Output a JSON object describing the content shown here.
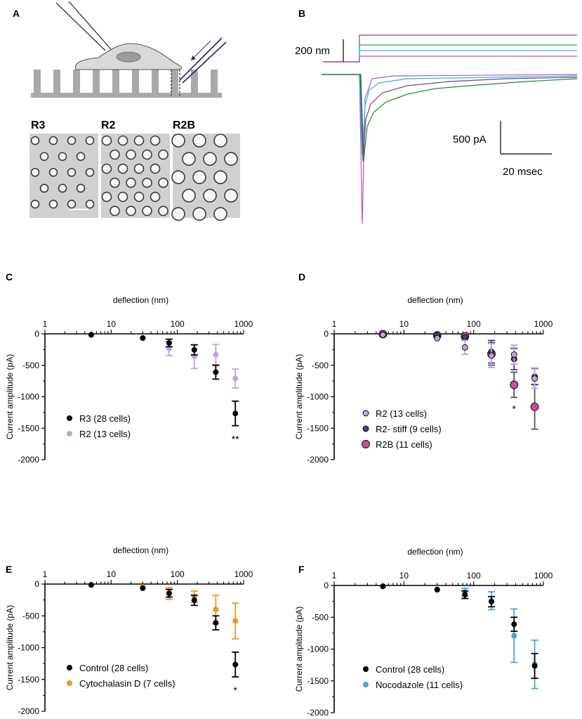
{
  "panel_letters": {
    "A": "A",
    "B": "B",
    "C": "C",
    "D": "D",
    "E": "E",
    "F": "F"
  },
  "panel_a": {
    "micrograph_labels": [
      "R3",
      "R2",
      "R2B"
    ],
    "colors": {
      "substrate": "#a7a9ac",
      "cell": "#d9d9db",
      "nucleus": "#9c9c9f",
      "probe": "#1f2a78",
      "pipette": "#333333"
    }
  },
  "panel_b": {
    "scale_deflection": "200 nm",
    "scale_current": "500 pA",
    "scale_time": "20 msec",
    "trace_colors": [
      "#8a3aa6",
      "#2aa845",
      "#2bb7d6",
      "#7a3f93",
      "#1d8c2e",
      "#b84fd0"
    ]
  },
  "chart_data": [
    {
      "panel": "C",
      "type": "scatter",
      "xlabel": "deflection (nm)",
      "ylabel": "Current amplitude (pA)",
      "xscale": "log",
      "xlim": [
        1,
        1000
      ],
      "ylim": [
        -2000,
        0
      ],
      "xticks": [
        "1",
        "10",
        "100",
        "1000"
      ],
      "yticks": [
        "0",
        "-500",
        "-1000",
        "-1500",
        "-2000"
      ],
      "legend_position": "bottom-left",
      "annotation": "**",
      "series": [
        {
          "name": "R3 (28 cells)",
          "color": "#000000",
          "x": [
            5,
            30,
            75,
            180,
            380,
            750
          ],
          "y": [
            -15,
            -65,
            -145,
            -255,
            -610,
            -1265
          ],
          "err": [
            5,
            20,
            60,
            80,
            110,
            195
          ]
        },
        {
          "name": "R2 (13 cells)",
          "color": "#c3a3d8",
          "x": [
            5,
            30,
            75,
            180,
            380,
            750
          ],
          "y": [
            -20,
            -75,
            -235,
            -360,
            -330,
            -710
          ],
          "err": [
            5,
            30,
            110,
            190,
            160,
            150
          ]
        }
      ]
    },
    {
      "panel": "D",
      "type": "scatter",
      "xlabel": "deflection (nm)",
      "ylabel": "Current amplitude (pA)",
      "xscale": "log",
      "xlim": [
        1,
        1000
      ],
      "ylim": [
        -2000,
        0
      ],
      "xticks": [
        "1",
        "10",
        "100",
        "1000"
      ],
      "yticks": [
        "0",
        "-500",
        "-1000",
        "-1500",
        "-2000"
      ],
      "legend_position": "bottom-left",
      "annotation": "*",
      "series": [
        {
          "name": "R2 (13 cells)",
          "color": "#c3a3d8",
          "x": [
            5,
            30,
            75,
            180,
            380,
            750
          ],
          "y": [
            -15,
            -70,
            -215,
            -345,
            -330,
            -710
          ],
          "err": [
            5,
            30,
            110,
            190,
            150,
            150
          ]
        },
        {
          "name": "R2- stiff (9 cells)",
          "color": "#3f3e8f",
          "x": [
            5,
            30,
            75,
            180,
            380,
            750
          ],
          "y": [
            -10,
            -25,
            -55,
            -285,
            -400,
            -680
          ],
          "err": [
            5,
            15,
            40,
            180,
            170,
            130
          ]
        },
        {
          "name": "R2B (11 cells)",
          "color": "#c8509a",
          "x": [
            5,
            30,
            75,
            180,
            380,
            750
          ],
          "y": [
            -5,
            -25,
            -40,
            -320,
            -810,
            -1160
          ],
          "err": [
            5,
            20,
            30,
            180,
            200,
            355
          ]
        }
      ]
    },
    {
      "panel": "E",
      "type": "scatter",
      "xlabel": "deflection (nm)",
      "ylabel": "Current amplitude (pA)",
      "xscale": "log",
      "xlim": [
        1,
        1000
      ],
      "ylim": [
        -2000,
        0
      ],
      "xticks": [
        "1",
        "10",
        "100",
        "1000"
      ],
      "yticks": [
        "0",
        "-500",
        "-1000",
        "-1500",
        "-2000"
      ],
      "legend_position": "bottom-left",
      "annotation": "*",
      "series": [
        {
          "name": "Control (28 cells)",
          "color": "#000000",
          "x": [
            5,
            30,
            75,
            180,
            380,
            750
          ],
          "y": [
            -15,
            -65,
            -145,
            -255,
            -610,
            -1265
          ],
          "err": [
            5,
            20,
            60,
            80,
            110,
            195
          ]
        },
        {
          "name": "Cytochalasin D (7 cells)",
          "color": "#f3922b",
          "x": [
            5,
            30,
            75,
            180,
            380,
            750
          ],
          "y": [
            -10,
            -45,
            -150,
            -200,
            -400,
            -580
          ],
          "err": [
            5,
            20,
            90,
            90,
            220,
            280
          ]
        }
      ]
    },
    {
      "panel": "F",
      "type": "scatter",
      "xlabel": "deflection (nm)",
      "ylabel": "Current amplitude (pA)",
      "xscale": "log",
      "xlim": [
        1,
        1000
      ],
      "ylim": [
        -2000,
        0
      ],
      "xticks": [
        "1",
        "10",
        "100",
        "1000"
      ],
      "yticks": [
        "0",
        "-500",
        "-1000",
        "-1500",
        "-2000"
      ],
      "legend_position": "bottom-left",
      "annotation": "",
      "series": [
        {
          "name": "Control (28 cells)",
          "color": "#000000",
          "x": [
            5,
            30,
            75,
            180,
            380,
            750
          ],
          "y": [
            -15,
            -65,
            -145,
            -255,
            -610,
            -1265
          ],
          "err": [
            5,
            20,
            60,
            80,
            110,
            195
          ]
        },
        {
          "name": "Nocodazole (11 cells)",
          "color": "#4ba3dd",
          "x": [
            5,
            30,
            75,
            180,
            380,
            750
          ],
          "y": [
            -10,
            -70,
            -105,
            -240,
            -790,
            -1240
          ],
          "err": [
            5,
            20,
            60,
            140,
            420,
            380
          ]
        }
      ]
    }
  ]
}
